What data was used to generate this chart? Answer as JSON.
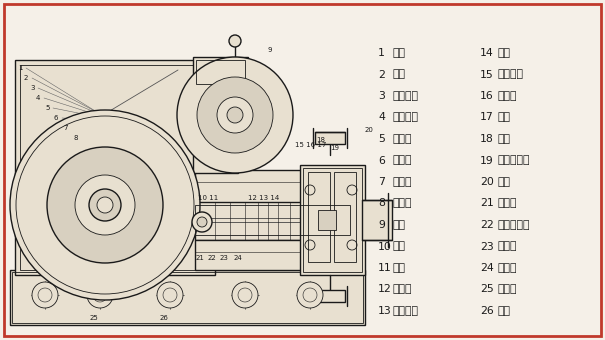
{
  "border_color": "#c0392b",
  "bg_color": "#f5f0e8",
  "text_color": "#1a1a1a",
  "legend_items": [
    [
      "1",
      "箱盖",
      "14",
      "垫料"
    ],
    [
      "2",
      "连杆",
      "15",
      "单向球阀"
    ],
    [
      "3",
      "连杆铜套",
      "16",
      "活塞环"
    ],
    [
      "4",
      "连杆罗丝",
      "17",
      "活塞"
    ],
    [
      "5",
      "偏心轮",
      "18",
      "泵体"
    ],
    [
      "6",
      "加油孔",
      "19",
      "单向球阀座"
    ],
    [
      "7",
      "齿轮油",
      "20",
      "泵盖"
    ],
    [
      "8",
      "皮带轮",
      "21",
      "连杆销"
    ],
    [
      "9",
      "电机",
      "22",
      "连杆小铜套"
    ],
    [
      "10",
      "箱体",
      "23",
      "十字头"
    ],
    [
      "11",
      "泵轴",
      "24",
      "往复缸"
    ],
    [
      "12",
      "垫料架",
      "25",
      "方油孔"
    ],
    [
      "13",
      "垫料压盖",
      "26",
      "底盘"
    ]
  ],
  "figsize": [
    6.05,
    3.4
  ],
  "dpi": 100,
  "line_color": "#1a1a1a",
  "fill_light": "#e8e0d0",
  "fill_mid": "#d8d0c0",
  "fill_dark": "#c0b8a8"
}
